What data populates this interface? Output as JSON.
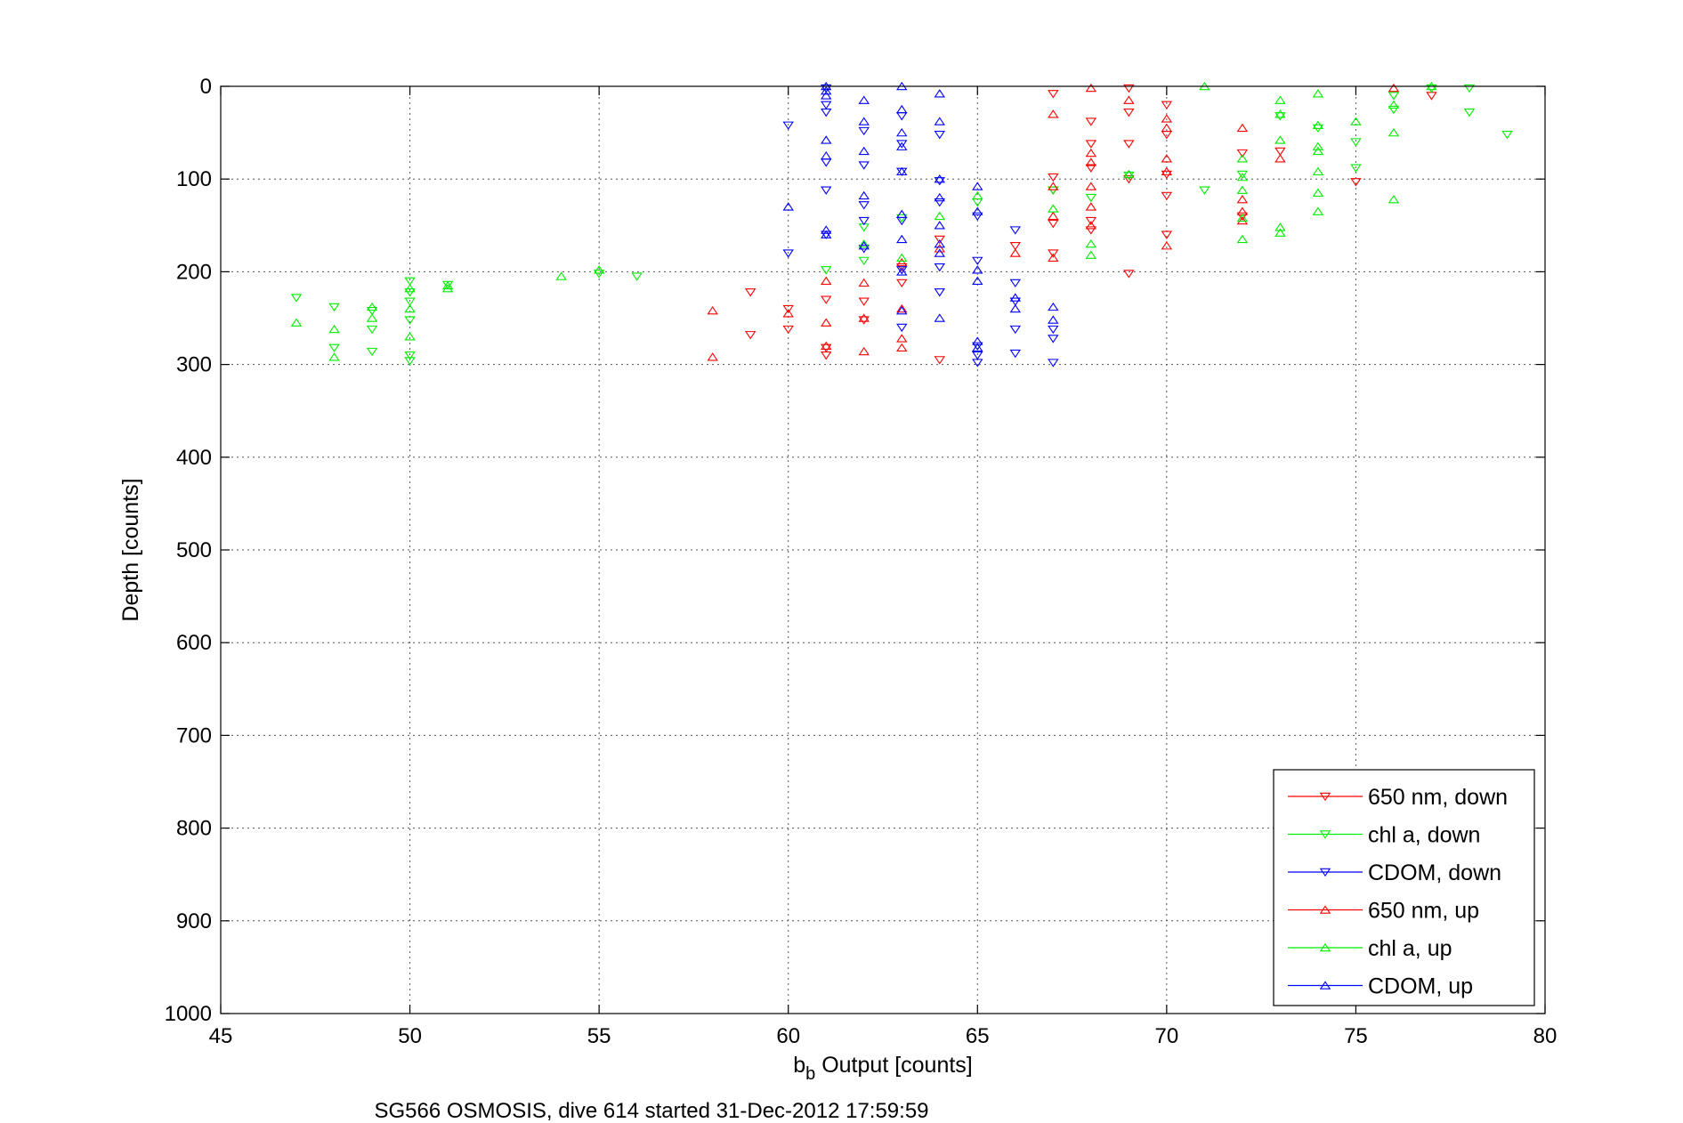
{
  "chart_data": {
    "type": "scatter",
    "xlabel_main": "b",
    "xlabel_sub": "b",
    "xlabel_rest": " Output [counts]",
    "ylabel": "Depth [counts]",
    "caption": "SG566 OSMOSIS, dive 614 started 31-Dec-2012 17:59:59",
    "xlim": [
      45,
      80
    ],
    "ylim": [
      0,
      1000
    ],
    "y_reversed": true,
    "grid": true,
    "legend_position": "bottom-right",
    "xticks": [
      "45",
      "50",
      "55",
      "60",
      "65",
      "70",
      "75",
      "80"
    ],
    "yticks": [
      "0",
      "100",
      "200",
      "300",
      "400",
      "500",
      "600",
      "700",
      "800",
      "900",
      "1000"
    ],
    "series": [
      {
        "name": "650 nm, down",
        "color": "#ff0000",
        "marker": "triangle-down",
        "points": [
          [
            59,
            222
          ],
          [
            59,
            268
          ],
          [
            60,
            240
          ],
          [
            60,
            262
          ],
          [
            61,
            230
          ],
          [
            61,
            282
          ],
          [
            61,
            290
          ],
          [
            62,
            232
          ],
          [
            62,
            252
          ],
          [
            63,
            195
          ],
          [
            63,
            212
          ],
          [
            64,
            165
          ],
          [
            64,
            295
          ],
          [
            66,
            172
          ],
          [
            67,
            8
          ],
          [
            67,
            98
          ],
          [
            67,
            112
          ],
          [
            67,
            148
          ],
          [
            67,
            180
          ],
          [
            68,
            38
          ],
          [
            68,
            62
          ],
          [
            68,
            88
          ],
          [
            68,
            145
          ],
          [
            68,
            155
          ],
          [
            69,
            2
          ],
          [
            69,
            28
          ],
          [
            69,
            62
          ],
          [
            69,
            100
          ],
          [
            69,
            202
          ],
          [
            70,
            20
          ],
          [
            70,
            52
          ],
          [
            70,
            95
          ],
          [
            70,
            118
          ],
          [
            70,
            160
          ],
          [
            72,
            72
          ],
          [
            72,
            140
          ],
          [
            73,
            70
          ],
          [
            75,
            103
          ],
          [
            77,
            10
          ]
        ]
      },
      {
        "name": "chl a, down",
        "color": "#00ee00",
        "marker": "triangle-down",
        "points": [
          [
            47,
            228
          ],
          [
            48,
            238
          ],
          [
            48,
            282
          ],
          [
            49,
            242
          ],
          [
            49,
            262
          ],
          [
            49,
            286
          ],
          [
            50,
            210
          ],
          [
            50,
            222
          ],
          [
            50,
            232
          ],
          [
            50,
            252
          ],
          [
            50,
            290
          ],
          [
            50,
            296
          ],
          [
            51,
            214
          ],
          [
            55,
            202
          ],
          [
            56,
            205
          ],
          [
            61,
            198
          ],
          [
            62,
            152
          ],
          [
            62,
            188
          ],
          [
            63,
            142
          ],
          [
            65,
            125
          ],
          [
            67,
            112
          ],
          [
            68,
            120
          ],
          [
            69,
            96
          ],
          [
            71,
            112
          ],
          [
            72,
            95
          ],
          [
            73,
            32
          ],
          [
            74,
            45
          ],
          [
            75,
            60
          ],
          [
            75,
            88
          ],
          [
            76,
            10
          ],
          [
            76,
            25
          ],
          [
            77,
            2
          ],
          [
            78,
            2
          ],
          [
            78,
            28
          ],
          [
            79,
            52
          ]
        ]
      },
      {
        "name": "CDOM, down",
        "color": "#0000ff",
        "marker": "triangle-down",
        "points": [
          [
            60,
            42
          ],
          [
            60,
            180
          ],
          [
            61,
            2
          ],
          [
            61,
            20
          ],
          [
            61,
            28
          ],
          [
            61,
            82
          ],
          [
            61,
            112
          ],
          [
            61,
            160
          ],
          [
            62,
            48
          ],
          [
            62,
            85
          ],
          [
            62,
            128
          ],
          [
            62,
            145
          ],
          [
            62,
            175
          ],
          [
            63,
            32
          ],
          [
            63,
            62
          ],
          [
            63,
            92
          ],
          [
            63,
            145
          ],
          [
            63,
            198
          ],
          [
            63,
            260
          ],
          [
            64,
            52
          ],
          [
            64,
            102
          ],
          [
            64,
            125
          ],
          [
            64,
            195
          ],
          [
            64,
            222
          ],
          [
            65,
            140
          ],
          [
            65,
            188
          ],
          [
            65,
            280
          ],
          [
            65,
            290
          ],
          [
            65,
            298
          ],
          [
            66,
            155
          ],
          [
            66,
            212
          ],
          [
            66,
            232
          ],
          [
            66,
            262
          ],
          [
            66,
            288
          ],
          [
            67,
            262
          ],
          [
            67,
            272
          ],
          [
            67,
            298
          ]
        ]
      },
      {
        "name": "650 nm, up",
        "color": "#ff0000",
        "marker": "triangle-up",
        "points": [
          [
            58,
            242
          ],
          [
            58,
            292
          ],
          [
            60,
            245
          ],
          [
            61,
            210
          ],
          [
            61,
            255
          ],
          [
            61,
            280
          ],
          [
            62,
            212
          ],
          [
            62,
            250
          ],
          [
            62,
            286
          ],
          [
            63,
            190
          ],
          [
            63,
            240
          ],
          [
            63,
            272
          ],
          [
            63,
            282
          ],
          [
            64,
            175
          ],
          [
            66,
            180
          ],
          [
            67,
            30
          ],
          [
            67,
            108
          ],
          [
            67,
            140
          ],
          [
            67,
            185
          ],
          [
            68,
            2
          ],
          [
            68,
            72
          ],
          [
            68,
            82
          ],
          [
            68,
            108
          ],
          [
            68,
            130
          ],
          [
            68,
            150
          ],
          [
            69,
            15
          ],
          [
            69,
            95
          ],
          [
            70,
            35
          ],
          [
            70,
            45
          ],
          [
            70,
            78
          ],
          [
            70,
            92
          ],
          [
            70,
            172
          ],
          [
            72,
            45
          ],
          [
            72,
            122
          ],
          [
            72,
            135
          ],
          [
            72,
            145
          ],
          [
            73,
            78
          ],
          [
            76,
            2
          ]
        ]
      },
      {
        "name": "chl a, up",
        "color": "#00ee00",
        "marker": "triangle-up",
        "points": [
          [
            47,
            255
          ],
          [
            48,
            262
          ],
          [
            48,
            292
          ],
          [
            49,
            238
          ],
          [
            49,
            250
          ],
          [
            50,
            218
          ],
          [
            50,
            240
          ],
          [
            50,
            270
          ],
          [
            51,
            215
          ],
          [
            51,
            218
          ],
          [
            54,
            205
          ],
          [
            55,
            198
          ],
          [
            62,
            170
          ],
          [
            63,
            185
          ],
          [
            64,
            140
          ],
          [
            65,
            118
          ],
          [
            67,
            132
          ],
          [
            68,
            170
          ],
          [
            68,
            182
          ],
          [
            69,
            95
          ],
          [
            71,
            0
          ],
          [
            72,
            78
          ],
          [
            72,
            98
          ],
          [
            72,
            112
          ],
          [
            72,
            142
          ],
          [
            72,
            165
          ],
          [
            73,
            15
          ],
          [
            73,
            30
          ],
          [
            73,
            58
          ],
          [
            73,
            152
          ],
          [
            73,
            158
          ],
          [
            74,
            8
          ],
          [
            74,
            42
          ],
          [
            74,
            65
          ],
          [
            74,
            70
          ],
          [
            74,
            92
          ],
          [
            74,
            115
          ],
          [
            74,
            135
          ],
          [
            75,
            38
          ],
          [
            76,
            20
          ],
          [
            76,
            50
          ],
          [
            76,
            122
          ],
          [
            77,
            0
          ]
        ]
      },
      {
        "name": "CDOM, up",
        "color": "#0000ff",
        "marker": "triangle-up",
        "points": [
          [
            60,
            130
          ],
          [
            61,
            0
          ],
          [
            61,
            5
          ],
          [
            61,
            10
          ],
          [
            61,
            58
          ],
          [
            61,
            75
          ],
          [
            61,
            155
          ],
          [
            61,
            160
          ],
          [
            62,
            15
          ],
          [
            62,
            38
          ],
          [
            62,
            70
          ],
          [
            62,
            118
          ],
          [
            62,
            172
          ],
          [
            63,
            0
          ],
          [
            63,
            25
          ],
          [
            63,
            50
          ],
          [
            63,
            65
          ],
          [
            63,
            92
          ],
          [
            63,
            138
          ],
          [
            63,
            165
          ],
          [
            63,
            200
          ],
          [
            63,
            242
          ],
          [
            64,
            8
          ],
          [
            64,
            38
          ],
          [
            64,
            100
          ],
          [
            64,
            120
          ],
          [
            64,
            150
          ],
          [
            64,
            170
          ],
          [
            64,
            180
          ],
          [
            64,
            250
          ],
          [
            65,
            108
          ],
          [
            65,
            135
          ],
          [
            65,
            198
          ],
          [
            65,
            210
          ],
          [
            65,
            275
          ],
          [
            65,
            282
          ],
          [
            66,
            228
          ],
          [
            66,
            240
          ],
          [
            67,
            238
          ],
          [
            67,
            252
          ]
        ]
      }
    ]
  }
}
